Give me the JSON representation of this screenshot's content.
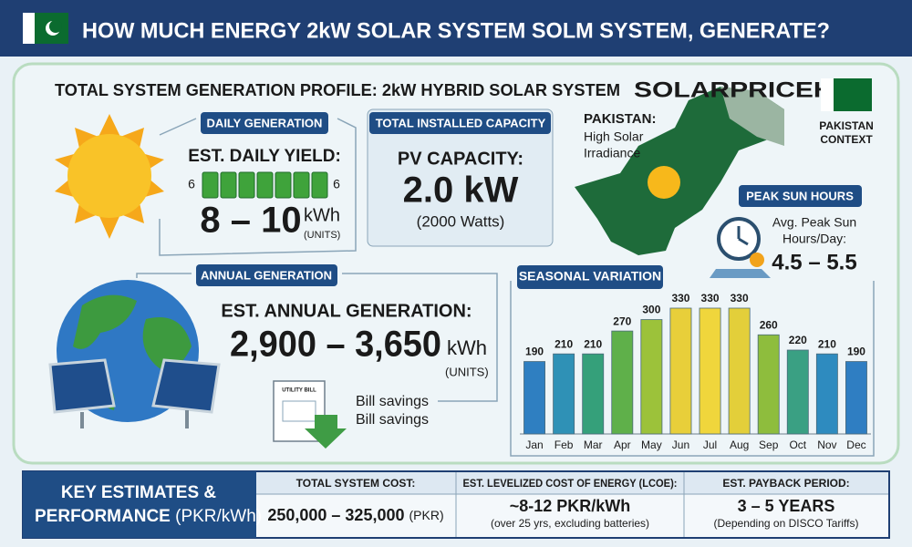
{
  "header": {
    "title": "HOW MUCH ENERGY 2kW SOLAR SYSTEM SOLM SYSTEM, GENERATE?"
  },
  "profile": {
    "title": "TOTAL SYSTEM GENERATION PROFILE: 2kW HYBRID SOLAR SYSTEM",
    "brand": "SOLARPRICEHUB"
  },
  "daily": {
    "tag": "DAILY GENERATION",
    "label": "EST. DAILY YIELD:",
    "scale_left": "6",
    "scale_right": "6",
    "value": "8 – 10",
    "unit": "kWh",
    "unit_note": "(UNITS)"
  },
  "capacity": {
    "tag": "TOTAL INSTALLED CAPACITY",
    "label": "PV CAPACITY:",
    "value": "2.0 kW",
    "note": "(2000 Watts)"
  },
  "pakistan": {
    "title": "PAKISTAN:",
    "lines": [
      "High Solar",
      "Irradiance"
    ],
    "context": [
      "PAKISTAN",
      "CONTEXT"
    ]
  },
  "sun_hours": {
    "tag": "PEAK SUN HOURS",
    "lines": [
      "Avg. Peak Sun",
      "Hours/Day:"
    ],
    "value": "4.5 – 5.5"
  },
  "annual": {
    "tag": "ANNUAL GENERATION",
    "label": "EST. ANNUAL GENERATION:",
    "value": "2,900 – 3,650",
    "unit": "kWh",
    "unit_note": "(UNITS)",
    "bill": "UTILITY BILL",
    "savings": [
      "Bill savings",
      "Bill savings"
    ]
  },
  "chart_data": {
    "type": "bar",
    "title": "SEASONAL VARIATION",
    "categories": [
      "Jan",
      "Feb",
      "Mar",
      "Apr",
      "May",
      "Jun",
      "Jul",
      "Aug",
      "Sep",
      "Oct",
      "Nov",
      "Dec"
    ],
    "values": [
      190,
      210,
      210,
      270,
      300,
      330,
      330,
      330,
      260,
      220,
      210,
      190
    ],
    "colors": [
      "#2f7fc1",
      "#2f91b6",
      "#35a07a",
      "#5fb04a",
      "#9cc23a",
      "#e8cf3a",
      "#f0d63c",
      "#e3cf3a",
      "#8ebd3d",
      "#3aa083",
      "#2e8bbf",
      "#2f7ec2"
    ]
  },
  "footer": {
    "heading": [
      "KEY ESTIMATES &",
      "PERFORMANCE",
      "(PKR/kWh)"
    ],
    "columns": [
      {
        "header": "TOTAL SYSTEM COST:",
        "value": "250,000 – 325,000",
        "unit": "(PKR)"
      },
      {
        "header": "EST. LEVELIZED COST OF ENERGY (LCOE):",
        "value": "~8-12 PKR/kWh",
        "note": "(over 25 yrs, excluding batteries)"
      },
      {
        "header": "EST. PAYBACK PERIOD:",
        "value": "3 – 5 YEARS",
        "note": "(Depending on DISCO Tariffs)"
      }
    ]
  }
}
